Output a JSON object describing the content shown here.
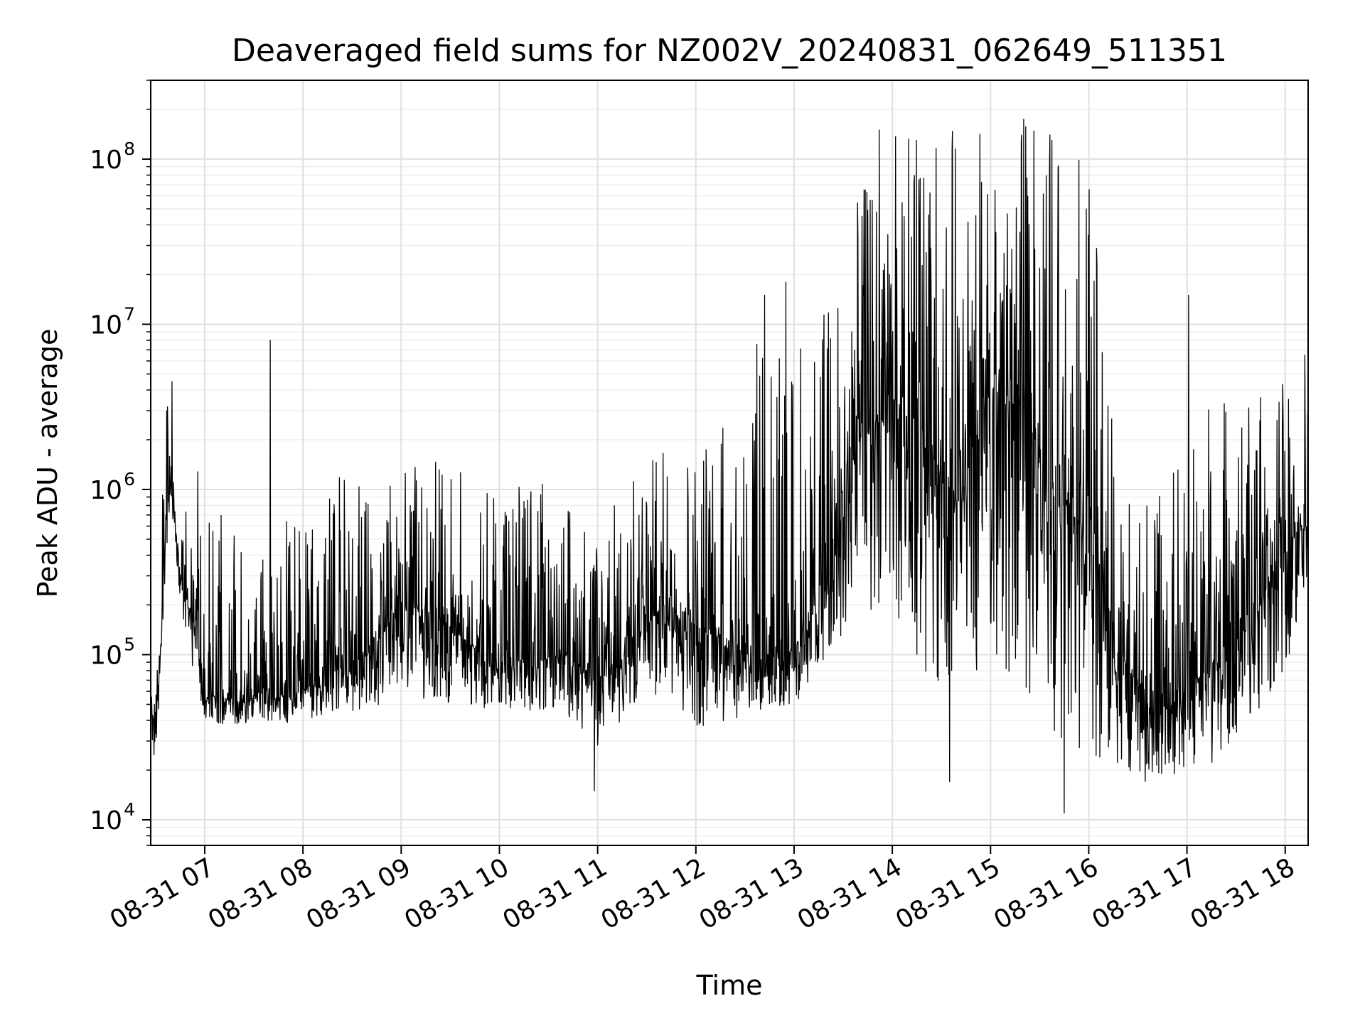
{
  "chart_data": {
    "type": "line",
    "title": "Deaveraged field sums for NZ002V_20240831_062649_511351",
    "xlabel": "Time",
    "ylabel": "Peak ADU - average",
    "yscale": "log",
    "ylim": [
      7000,
      300000000
    ],
    "xlim": [
      "08-31 06:27",
      "08-31 18:14"
    ],
    "grid": true,
    "line_color": "#000000",
    "x_ticks": [
      "08-31 07",
      "08-31 08",
      "08-31 09",
      "08-31 10",
      "08-31 11",
      "08-31 12",
      "08-31 13",
      "08-31 14",
      "08-31 15",
      "08-31 16",
      "08-31 17",
      "08-31 18"
    ],
    "y_ticks": [
      {
        "base": "10",
        "exp": "4",
        "value": 10000
      },
      {
        "base": "10",
        "exp": "5",
        "value": 100000
      },
      {
        "base": "10",
        "exp": "6",
        "value": 1000000
      },
      {
        "base": "10",
        "exp": "7",
        "value": 10000000
      },
      {
        "base": "10",
        "exp": "8",
        "value": 100000000
      }
    ],
    "series": [
      {
        "x": [
          "08-31 06:27",
          "08-31 06:30",
          "08-31 06:33",
          "08-31 06:36",
          "08-31 06:39",
          "08-31 06:42",
          "08-31 06:45",
          "08-31 06:50",
          "08-31 06:55",
          "08-31 07:00",
          "08-31 07:10",
          "08-31 07:20",
          "08-31 07:30",
          "08-31 07:45",
          "08-31 08:00",
          "08-31 08:20",
          "08-31 08:40",
          "08-31 09:00",
          "08-31 09:20",
          "08-31 09:40",
          "08-31 10:00",
          "08-31 10:20",
          "08-31 10:40",
          "08-31 11:00",
          "08-31 11:20",
          "08-31 11:40",
          "08-31 12:00",
          "08-31 12:20",
          "08-31 12:40",
          "08-31 13:00",
          "08-31 13:20",
          "08-31 13:40",
          "08-31 14:00",
          "08-31 14:20",
          "08-31 14:40",
          "08-31 15:00",
          "08-31 15:20",
          "08-31 15:40",
          "08-31 16:00",
          "08-31 16:20",
          "08-31 16:40",
          "08-31 17:00",
          "08-31 17:20",
          "08-31 17:40",
          "08-31 18:00",
          "08-31 18:14"
        ],
        "median": [
          50000,
          35000,
          100000,
          600000,
          1000000,
          700000,
          300000,
          200000,
          120000,
          60000,
          55000,
          50000,
          55000,
          55000,
          60000,
          80000,
          100000,
          200000,
          180000,
          120000,
          80000,
          90000,
          100000,
          70000,
          110000,
          200000,
          150000,
          120000,
          90000,
          110000,
          250000,
          2000000,
          3000000,
          2000000,
          800000,
          4000000,
          3000000,
          1000000,
          500000,
          100000,
          40000,
          60000,
          100000,
          150000,
          500000,
          600000
        ],
        "low": [
          30000,
          22000,
          60000,
          300000,
          500000,
          400000,
          200000,
          120000,
          60000,
          40000,
          38000,
          37000,
          40000,
          38000,
          40000,
          45000,
          45000,
          60000,
          50000,
          50000,
          45000,
          45000,
          45000,
          25000,
          45000,
          60000,
          30000,
          40000,
          45000,
          50000,
          80000,
          200000,
          150000,
          80000,
          50000,
          100000,
          60000,
          30000,
          25000,
          20000,
          15000,
          20000,
          20000,
          40000,
          80000,
          300000
        ],
        "high": [
          60000,
          50000,
          300000,
          4500000,
          2500000,
          1500000,
          1000000,
          900000,
          1400000,
          1200000,
          700000,
          500000,
          400000,
          500000,
          1200000,
          1500000,
          1500000,
          1500000,
          1500000,
          1400000,
          1200000,
          1200000,
          1000000,
          600000,
          1200000,
          1800000,
          1800000,
          4000000,
          10000000,
          8000000,
          15000000,
          60000000,
          150000000,
          170000000,
          150000000,
          180000000,
          180000000,
          190000000,
          90000000,
          2000000,
          800000,
          2000000,
          4000000,
          4000000,
          5000000,
          6000000
        ],
        "spikes": [
          {
            "x": "08-31 06:40",
            "y": 4500000
          },
          {
            "x": "08-31 07:40",
            "y": 8000000
          },
          {
            "x": "08-31 10:58",
            "y": 15000
          },
          {
            "x": "08-31 12:42",
            "y": 15000000
          },
          {
            "x": "08-31 12:55",
            "y": 18000000
          },
          {
            "x": "08-31 13:52",
            "y": 150000000
          },
          {
            "x": "08-31 14:35",
            "y": 17000
          },
          {
            "x": "08-31 15:45",
            "y": 11000
          },
          {
            "x": "08-31 17:01",
            "y": 15000000
          },
          {
            "x": "08-31 18:12",
            "y": 6500000
          }
        ]
      }
    ]
  }
}
